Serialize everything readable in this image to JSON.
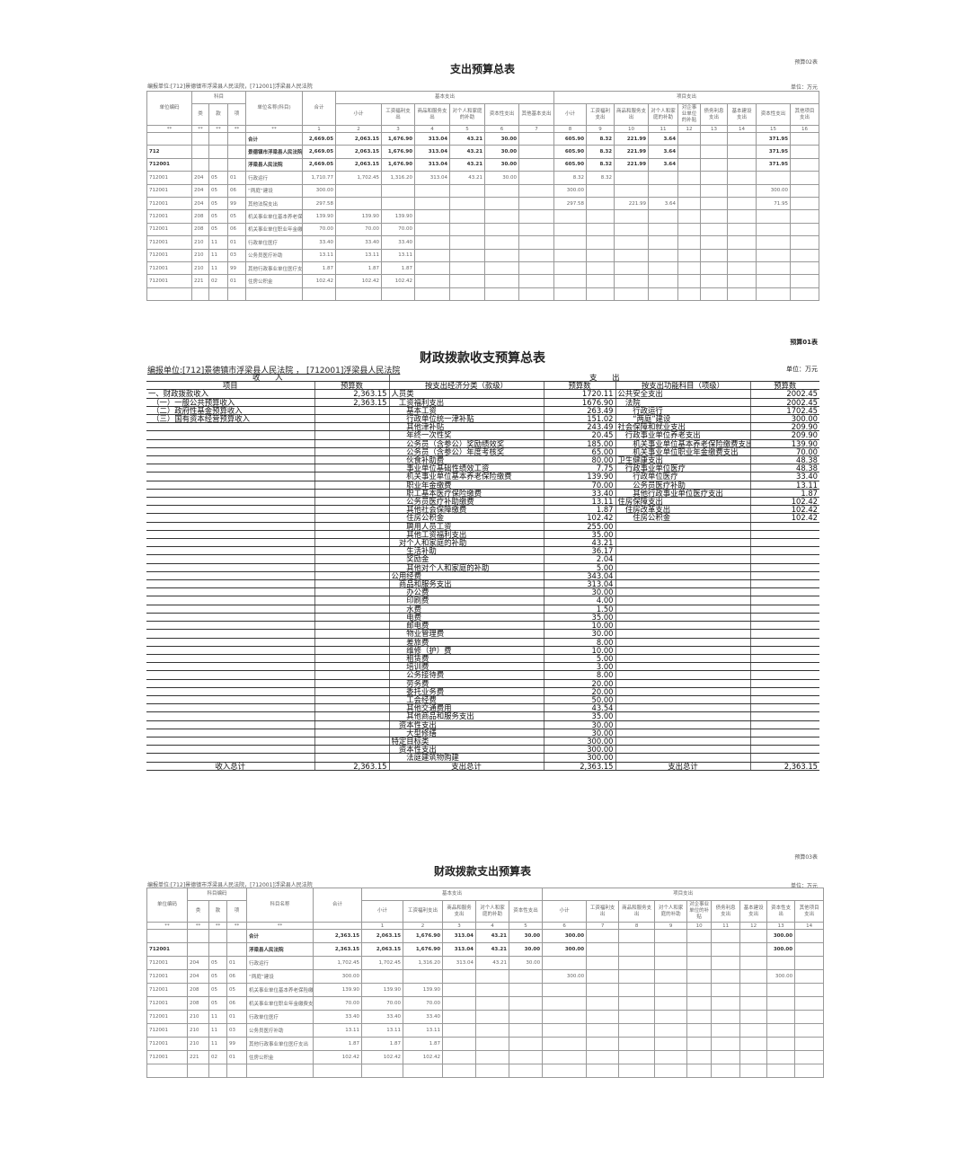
{
  "top_table": {
    "title": "支出预算总表",
    "form_no": "预算02表",
    "unit_org": "编报单位:[712]景德镇市浮梁县人民法院，[712001]浮梁县人民法院",
    "unit_label": "单位：万元",
    "headers": {
      "unit_code": "单位编码",
      "subject": "科目",
      "lei": "类",
      "kuan": "款",
      "xiang": "项",
      "unit_name": "单位名称(科目)",
      "total": "合计",
      "basic": "基本支出",
      "project": "项目支出",
      "basic_cols": [
        "小计",
        "工资福利支出",
        "商品和服务支出",
        "对个人和家庭的补助",
        "资本性支出",
        "其他基本支出"
      ],
      "project_cols": [
        "小计",
        "工资福利支出",
        "商品和服务支出",
        "对个人和家庭的补助",
        "对企事业单位的补贴",
        "债务利息支出",
        "基本建设支出",
        "资本性支出",
        "其他项目支出"
      ]
    },
    "index_row": [
      "**",
      "**",
      "**",
      "**",
      "**",
      "1",
      "2",
      "3",
      "4",
      "5",
      "6",
      "7",
      "8",
      "9",
      "10",
      "11",
      "12",
      "13",
      "14",
      "15",
      "16"
    ],
    "rows": [
      [
        "",
        "",
        "",
        "",
        "合计",
        "2,669.05",
        "2,063.15",
        "1,676.90",
        "313.04",
        "43.21",
        "30.00",
        "",
        "605.90",
        "8.32",
        "221.99",
        "3.64",
        "",
        "",
        "",
        "371.95",
        ""
      ],
      [
        "712",
        "",
        "",
        "",
        "景德镇市浮梁县人民法院",
        "2,669.05",
        "2,063.15",
        "1,676.90",
        "313.04",
        "43.21",
        "30.00",
        "",
        "605.90",
        "8.32",
        "221.99",
        "3.64",
        "",
        "",
        "",
        "371.95",
        ""
      ],
      [
        "712001",
        "",
        "",
        "",
        "浮梁县人民法院",
        "2,669.05",
        "2,063.15",
        "1,676.90",
        "313.04",
        "43.21",
        "30.00",
        "",
        "605.90",
        "8.32",
        "221.99",
        "3.64",
        "",
        "",
        "",
        "371.95",
        ""
      ],
      [
        "712001",
        "204",
        "05",
        "01",
        "行政运行",
        "1,710.77",
        "1,702.45",
        "1,316.20",
        "313.04",
        "43.21",
        "30.00",
        "",
        "8.32",
        "8.32",
        "",
        "",
        "",
        "",
        "",
        "",
        ""
      ],
      [
        "712001",
        "204",
        "05",
        "06",
        "“两庭”建设",
        "300.00",
        "",
        "",
        "",
        "",
        "",
        "",
        "300.00",
        "",
        "",
        "",
        "",
        "",
        "",
        "300.00",
        ""
      ],
      [
        "712001",
        "204",
        "05",
        "99",
        "其他法院支出",
        "297.58",
        "",
        "",
        "",
        "",
        "",
        "",
        "297.58",
        "",
        "221.99",
        "3.64",
        "",
        "",
        "",
        "71.95",
        ""
      ],
      [
        "712001",
        "208",
        "05",
        "05",
        "机关事业单位基本养老保险缴费支出",
        "139.90",
        "139.90",
        "139.90",
        "",
        "",
        "",
        "",
        "",
        "",
        "",
        "",
        "",
        "",
        "",
        "",
        ""
      ],
      [
        "712001",
        "208",
        "05",
        "06",
        "机关事业单位职业年金缴费支出",
        "70.00",
        "70.00",
        "70.00",
        "",
        "",
        "",
        "",
        "",
        "",
        "",
        "",
        "",
        "",
        "",
        "",
        ""
      ],
      [
        "712001",
        "210",
        "11",
        "01",
        "行政单位医疗",
        "33.40",
        "33.40",
        "33.40",
        "",
        "",
        "",
        "",
        "",
        "",
        "",
        "",
        "",
        "",
        "",
        "",
        ""
      ],
      [
        "712001",
        "210",
        "11",
        "03",
        "公务员医疗补助",
        "13.11",
        "13.11",
        "13.11",
        "",
        "",
        "",
        "",
        "",
        "",
        "",
        "",
        "",
        "",
        "",
        "",
        ""
      ],
      [
        "712001",
        "210",
        "11",
        "99",
        "其他行政事业单位医疗支出",
        "1.87",
        "1.87",
        "1.87",
        "",
        "",
        "",
        "",
        "",
        "",
        "",
        "",
        "",
        "",
        "",
        "",
        ""
      ],
      [
        "712001",
        "221",
        "02",
        "01",
        "住房公积金",
        "102.42",
        "102.42",
        "102.42",
        "",
        "",
        "",
        "",
        "",
        "",
        "",
        "",
        "",
        "",
        "",
        "",
        ""
      ],
      [
        "",
        "",
        "",
        "",
        "",
        "",
        "",
        "",
        "",
        "",
        "",
        "",
        "",
        "",
        "",
        "",
        "",
        "",
        "",
        "",
        ""
      ]
    ]
  },
  "mid_table": {
    "title": "财政拨款收支预算总表",
    "form_no": "预算01表",
    "unit_org": "编报单位:[712]景德镇市浮梁县人民法院 ， [712001]浮梁县人民法院",
    "unit_label": "单位：万元",
    "header": {
      "income": "收　　入",
      "expenditure": "支　　出",
      "item": "项目",
      "budget": "预算数",
      "econ": "按支出经济分类（款级）",
      "budget2": "预算数",
      "func": "按支出功能科目（项级）",
      "budget3": "预算数"
    },
    "rows": [
      [
        "一、财政拨款收入",
        "2,363.15",
        "人员类",
        "1720.11",
        "公共安全支出",
        "2002.45"
      ],
      [
        "　（一）一般公共预算收入",
        "2,363.15",
        "　工资福利支出",
        "1676.90",
        "　法院",
        "2002.45"
      ],
      [
        "　（二）政府性基金预算收入",
        "",
        "　　基本工资",
        "263.49",
        "　　行政运行",
        "1702.45"
      ],
      [
        "　（三）国有资本经营预算收入",
        "",
        "　　行政单位统一津补贴",
        "151.02",
        "　　“两庭”建设",
        "300.00"
      ],
      [
        "",
        "",
        "　　其他津补贴",
        "243.49",
        "社会保障和就业支出",
        "209.90"
      ],
      [
        "",
        "",
        "　　年终一次性奖",
        "20.45",
        "　行政事业单位养老支出",
        "209.90"
      ],
      [
        "",
        "",
        "　　公务员（含参公）奖励绩效奖",
        "185.00",
        "　　机关事业单位基本养老保险缴费支出",
        "139.90"
      ],
      [
        "",
        "",
        "　　公务员（含参公）年度考核奖",
        "65.00",
        "　　机关事业单位职业年金缴费支出",
        "70.00"
      ],
      [
        "",
        "",
        "　　伙食补助费",
        "80.00",
        "卫生健康支出",
        "48.38"
      ],
      [
        "",
        "",
        "　　事业单位基础性绩效工资",
        "7.75",
        "　行政事业单位医疗",
        "48.38"
      ],
      [
        "",
        "",
        "　　机关事业单位基本养老保险缴费",
        "139.90",
        "　　行政单位医疗",
        "33.40"
      ],
      [
        "",
        "",
        "　　职业年金缴费",
        "70.00",
        "　　公务员医疗补助",
        "13.11"
      ],
      [
        "",
        "",
        "　　职工基本医疗保险缴费",
        "33.40",
        "　　其他行政事业单位医疗支出",
        "1.87"
      ],
      [
        "",
        "",
        "　　公务员医疗补助缴费",
        "13.11",
        "住房保障支出",
        "102.42"
      ],
      [
        "",
        "",
        "　　其他社会保障缴费",
        "1.87",
        "　住房改革支出",
        "102.42"
      ],
      [
        "",
        "",
        "　　住房公积金",
        "102.42",
        "　　住房公积金",
        "102.42"
      ],
      [
        "",
        "",
        "　　聘用人员工资",
        "255.00",
        "",
        ""
      ],
      [
        "",
        "",
        "　　其他工资福利支出",
        "35.00",
        "",
        ""
      ],
      [
        "",
        "",
        "　对个人和家庭的补助",
        "43.21",
        "",
        ""
      ],
      [
        "",
        "",
        "　　生活补助",
        "36.17",
        "",
        ""
      ],
      [
        "",
        "",
        "　　奖励金",
        "2.04",
        "",
        ""
      ],
      [
        "",
        "",
        "　　其他对个人和家庭的补助",
        "5.00",
        "",
        ""
      ],
      [
        "",
        "",
        "公用经费",
        "343.04",
        "",
        ""
      ],
      [
        "",
        "",
        "　商品和服务支出",
        "313.04",
        "",
        ""
      ],
      [
        "",
        "",
        "　　办公费",
        "30.00",
        "",
        ""
      ],
      [
        "",
        "",
        "　　印刷费",
        "4.00",
        "",
        ""
      ],
      [
        "",
        "",
        "　　水费",
        "1.50",
        "",
        ""
      ],
      [
        "",
        "",
        "　　电费",
        "35.00",
        "",
        ""
      ],
      [
        "",
        "",
        "　　邮电费",
        "10.00",
        "",
        ""
      ],
      [
        "",
        "",
        "　　物业管理费",
        "30.00",
        "",
        ""
      ],
      [
        "",
        "",
        "　　差旅费",
        "8.00",
        "",
        ""
      ],
      [
        "",
        "",
        "　　维修（护）费",
        "10.00",
        "",
        ""
      ],
      [
        "",
        "",
        "　　租赁费",
        "5.00",
        "",
        ""
      ],
      [
        "",
        "",
        "　　培训费",
        "3.00",
        "",
        ""
      ],
      [
        "",
        "",
        "　　公务接待费",
        "8.00",
        "",
        ""
      ],
      [
        "",
        "",
        "　　劳务费",
        "20.00",
        "",
        ""
      ],
      [
        "",
        "",
        "　　委托业务费",
        "20.00",
        "",
        ""
      ],
      [
        "",
        "",
        "　　工会经费",
        "50.00",
        "",
        ""
      ],
      [
        "",
        "",
        "　　其他交通费用",
        "43.54",
        "",
        ""
      ],
      [
        "",
        "",
        "　　其他商品和服务支出",
        "35.00",
        "",
        ""
      ],
      [
        "",
        "",
        "　资本性支出",
        "30.00",
        "",
        ""
      ],
      [
        "",
        "",
        "　　大型修缮",
        "30.00",
        "",
        ""
      ],
      [
        "",
        "",
        "特定目标类",
        "300.00",
        "",
        ""
      ],
      [
        "",
        "",
        "　资本性支出",
        "300.00",
        "",
        ""
      ],
      [
        "",
        "",
        "　　法庭建筑物购建",
        "300.00",
        "",
        ""
      ]
    ],
    "total": [
      "收入总计",
      "2,363.15",
      "支出总计",
      "2,363.15",
      "支出总计",
      "2,363.15"
    ]
  },
  "bottom_table": {
    "title": "财政拨款支出预算表",
    "form_no": "预算03表",
    "unit_org": "编报单位:[712]景德镇市浮梁县人民法院，[712001]浮梁县人民法院",
    "unit_label": "单位：万元",
    "headers": {
      "unit_code": "单位编码",
      "subject": "科目编码",
      "lei": "类",
      "kuan": "款",
      "xiang": "项",
      "unit_name": "科目名称",
      "total": "合计",
      "basic": "基本支出",
      "project": "项目支出",
      "basic_cols": [
        "小计",
        "工资福利支出",
        "商品和服务支出",
        "对个人和家庭的补助",
        "资本性支出"
      ],
      "project_cols": [
        "小计",
        "工资福利支出",
        "商品和服务支出",
        "对个人和家庭的补助",
        "对企事业单位的补贴",
        "债务利息支出",
        "基本建设支出",
        "资本性支出",
        "其他项目支出"
      ]
    },
    "index_row": [
      "**",
      "**",
      "**",
      "**",
      "**",
      "",
      "1",
      "2",
      "3",
      "4",
      "5",
      "6",
      "7",
      "8",
      "9",
      "10",
      "11",
      "12",
      "13",
      "14"
    ],
    "rows": [
      [
        "",
        "",
        "",
        "",
        "合计",
        "2,363.15",
        "2,063.15",
        "1,676.90",
        "313.04",
        "43.21",
        "30.00",
        "300.00",
        "",
        "",
        "",
        "",
        "",
        "",
        "300.00",
        ""
      ],
      [
        "712001",
        "",
        "",
        "",
        "浮梁县人民法院",
        "2,363.15",
        "2,063.15",
        "1,676.90",
        "313.04",
        "43.21",
        "30.00",
        "300.00",
        "",
        "",
        "",
        "",
        "",
        "",
        "300.00",
        ""
      ],
      [
        "712001",
        "204",
        "05",
        "01",
        "行政运行",
        "1,702.45",
        "1,702.45",
        "1,316.20",
        "313.04",
        "43.21",
        "30.00",
        "",
        "",
        "",
        "",
        "",
        "",
        "",
        "",
        ""
      ],
      [
        "712001",
        "204",
        "05",
        "06",
        "“两庭”建设",
        "300.00",
        "",
        "",
        "",
        "",
        "",
        "300.00",
        "",
        "",
        "",
        "",
        "",
        "",
        "300.00",
        ""
      ],
      [
        "712001",
        "208",
        "05",
        "05",
        "机关事业单位基本养老保险缴费支出",
        "139.90",
        "139.90",
        "139.90",
        "",
        "",
        "",
        "",
        "",
        "",
        "",
        "",
        "",
        "",
        "",
        ""
      ],
      [
        "712001",
        "208",
        "05",
        "06",
        "机关事业单位职业年金缴费支出",
        "70.00",
        "70.00",
        "70.00",
        "",
        "",
        "",
        "",
        "",
        "",
        "",
        "",
        "",
        "",
        "",
        ""
      ],
      [
        "712001",
        "210",
        "11",
        "01",
        "行政单位医疗",
        "33.40",
        "33.40",
        "33.40",
        "",
        "",
        "",
        "",
        "",
        "",
        "",
        "",
        "",
        "",
        "",
        ""
      ],
      [
        "712001",
        "210",
        "11",
        "03",
        "公务员医疗补助",
        "13.11",
        "13.11",
        "13.11",
        "",
        "",
        "",
        "",
        "",
        "",
        "",
        "",
        "",
        "",
        "",
        ""
      ],
      [
        "712001",
        "210",
        "11",
        "99",
        "其他行政事业单位医疗支出",
        "1.87",
        "1.87",
        "1.87",
        "",
        "",
        "",
        "",
        "",
        "",
        "",
        "",
        "",
        "",
        "",
        ""
      ],
      [
        "712001",
        "221",
        "02",
        "01",
        "住房公积金",
        "102.42",
        "102.42",
        "102.42",
        "",
        "",
        "",
        "",
        "",
        "",
        "",
        "",
        "",
        "",
        "",
        ""
      ],
      [
        "",
        "",
        "",
        "",
        "",
        "",
        "",
        "",
        "",
        "",
        "",
        "",
        "",
        "",
        "",
        "",
        "",
        "",
        "",
        ""
      ]
    ]
  }
}
